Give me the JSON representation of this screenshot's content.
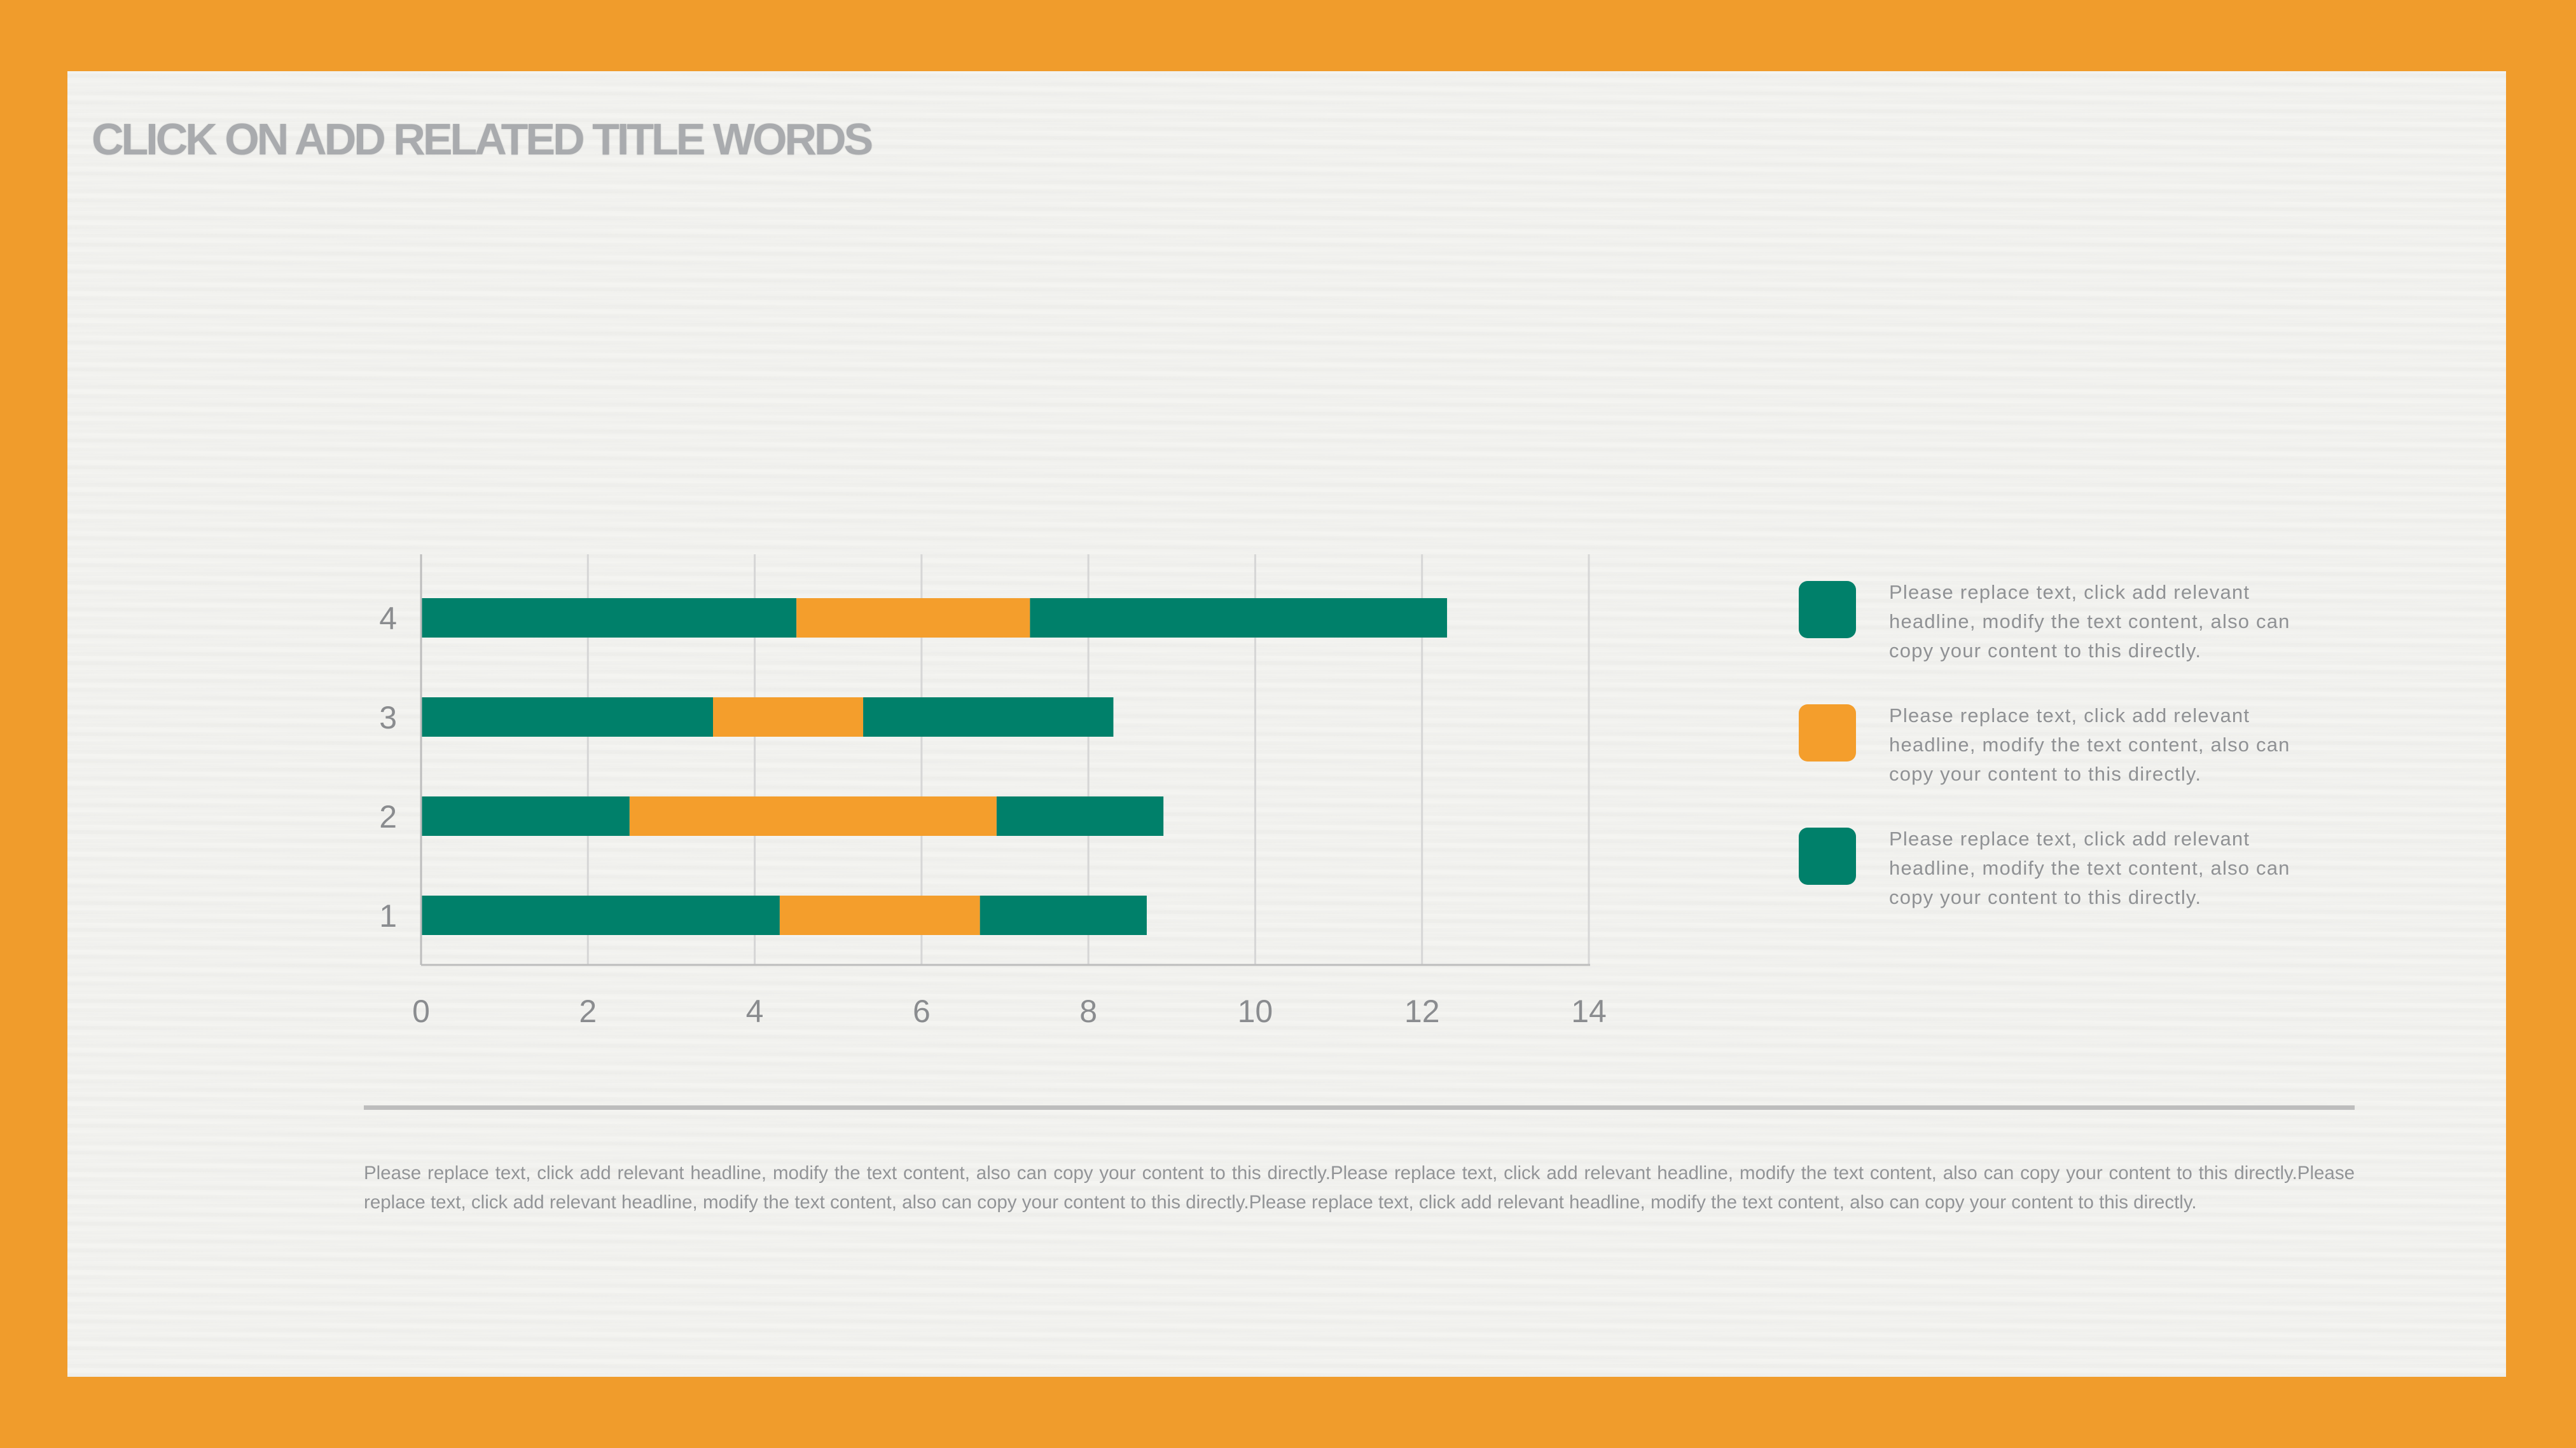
{
  "slide": {
    "title": "CLICK ON ADD RELATED TITLE WORDS",
    "body_text": "Please replace text, click add relevant headline, modify the text content, also can copy your content to this directly.Please replace text, click add relevant headline, modify the text content, also can copy your content to this directly.Please replace text, click add relevant headline, modify the text content, also can copy your content to this directly.Please replace text, click add relevant headline, modify the text content, also can copy your content to this directly."
  },
  "legend": [
    {
      "color": "#00806A",
      "text": "Please replace text, click add relevant headline, modify the text content, also can copy your content to this directly."
    },
    {
      "color": "#F49E2C",
      "text": "Please replace text, click add relevant headline, modify the text content, also can copy your content to this directly."
    },
    {
      "color": "#00806A",
      "text": "Please replace text, click add relevant headline, modify the text content, also can copy your content to this directly."
    }
  ],
  "colors": {
    "frame": "#F09C2C",
    "green": "#00806A",
    "orange": "#F49E2C",
    "grid": "#D6D6D6",
    "tick_text": "#8A8C8F"
  },
  "chart_data": {
    "type": "bar",
    "orientation": "horizontal",
    "stacked": true,
    "categories": [
      "1",
      "2",
      "3",
      "4"
    ],
    "series": [
      {
        "color": "#00806A",
        "values": [
          4.3,
          2.5,
          3.5,
          4.5
        ]
      },
      {
        "color": "#F49E2C",
        "values": [
          2.4,
          4.4,
          1.8,
          2.8
        ]
      },
      {
        "color": "#00806A",
        "values": [
          2.0,
          2.0,
          3.0,
          5.0
        ]
      }
    ],
    "xlim": [
      0,
      14
    ],
    "x_ticks": [
      0,
      2,
      4,
      6,
      8,
      10,
      12,
      14
    ],
    "grid": true,
    "xlabel": "",
    "ylabel": ""
  }
}
